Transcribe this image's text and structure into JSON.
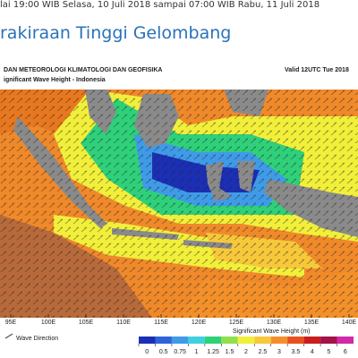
{
  "header": {
    "validity": "lai 19:00 WIB  Selasa, 10 Juli 2018 sampai 07:00 WIB  Rabu, 11 Juli 2018",
    "title": "rakiraan Tinggi Gelombang"
  },
  "map": {
    "agency": "DAN METEOROLOGI KLIMATOLOGI DAN GEOFISIKA",
    "subtitle": "ignificant Wave Height - Indonesia",
    "valid": "Valid 12UTC Tue 2018",
    "longitudes": [
      "95E",
      "100E",
      "105E",
      "110E",
      "115E",
      "120E",
      "125E",
      "130E",
      "135E",
      "140E"
    ],
    "direction_label": "Wave Direction",
    "legend": {
      "title": "Significant Wave Height (m)",
      "ticks": [
        0,
        0.5,
        0.75,
        1,
        1.25,
        1.5,
        2,
        2.5,
        3,
        3.5,
        4,
        5,
        6
      ],
      "colors": [
        "#1b2fb5",
        "#2f63d8",
        "#3f9be8",
        "#3fd0e0",
        "#2fd07a",
        "#8fe04a",
        "#f2ef3a",
        "#f7c83a",
        "#f3902a",
        "#e8501f",
        "#c81d1d",
        "#a3124a",
        "#d02aa8"
      ]
    }
  }
}
